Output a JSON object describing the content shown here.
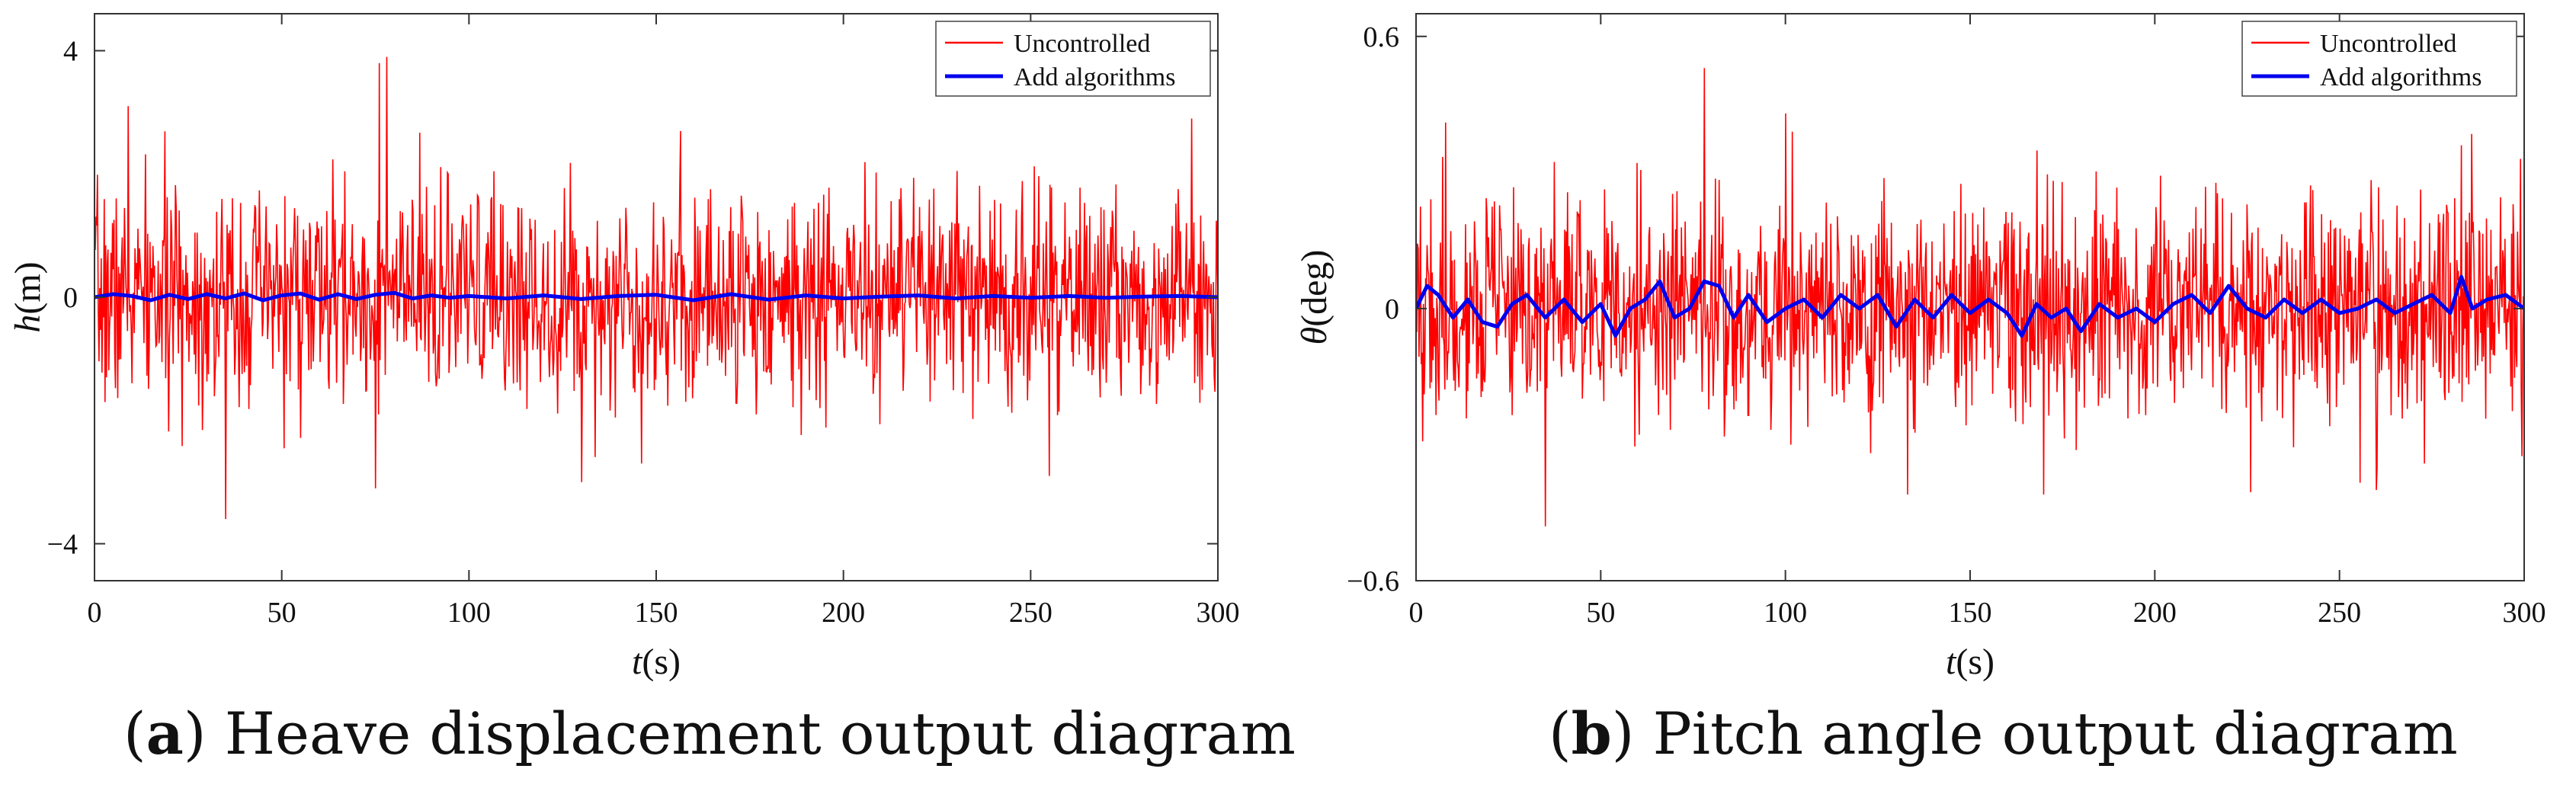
{
  "chart_data": [
    {
      "type": "line",
      "panel": "a",
      "panel_label": "a",
      "caption": "Heave displacement output diagram",
      "xlabel_var": "t",
      "xlabel_unit": "(s)",
      "ylabel_var": "h",
      "ylabel_unit": "(m)",
      "xlim": [
        0,
        300
      ],
      "ylim": [
        -4.6,
        4.6
      ],
      "xticks": [
        0,
        50,
        100,
        150,
        200,
        250,
        300
      ],
      "xtick_labels": [
        "0",
        "50",
        "100",
        "150",
        "200",
        "250",
        "300"
      ],
      "yticks": [
        -4,
        0,
        4
      ],
      "ytick_labels": [
        "−4",
        "0",
        "4"
      ],
      "legend": [
        "Uncontrolled",
        "Add algorithms"
      ],
      "legend_location": "top-right",
      "colors": {
        "uncontrolled": "#ff0000",
        "controlled": "#0000ee"
      },
      "series": [
        {
          "name": "Uncontrolled",
          "note": "dense random oscillation, peaks to about 3.9 and troughs to about -3.6",
          "amplitude": 1.2,
          "n_points": 1500,
          "seed": 7,
          "peaks": [
            [
              9,
              3.1
            ],
            [
              35,
              -3.6
            ],
            [
              76,
              3.8
            ],
            [
              78,
              3.9
            ],
            [
              75,
              -3.1
            ],
            [
              130,
              -3.0
            ],
            [
              146,
              -2.7
            ],
            [
              255,
              -2.9
            ],
            [
              293,
              2.9
            ]
          ]
        },
        {
          "name": "Add algorithms",
          "x": [
            0,
            5,
            10,
            15,
            20,
            25,
            30,
            35,
            40,
            45,
            50,
            55,
            60,
            65,
            70,
            75,
            80,
            85,
            90,
            95,
            100,
            110,
            120,
            130,
            140,
            150,
            160,
            170,
            180,
            190,
            200,
            210,
            220,
            230,
            240,
            250,
            260,
            270,
            280,
            290,
            300
          ],
          "values": [
            0.0,
            0.05,
            0.02,
            -0.05,
            0.04,
            -0.03,
            0.05,
            -0.02,
            0.06,
            -0.05,
            0.03,
            0.06,
            -0.04,
            0.05,
            -0.03,
            0.04,
            0.07,
            -0.02,
            0.03,
            -0.01,
            0.02,
            -0.02,
            0.03,
            -0.03,
            0.02,
            0.04,
            -0.05,
            0.05,
            -0.04,
            0.03,
            -0.02,
            0.01,
            0.03,
            -0.02,
            0.02,
            -0.01,
            0.02,
            -0.01,
            0.01,
            0.02,
            0.0
          ]
        }
      ]
    },
    {
      "type": "line",
      "panel": "b",
      "panel_label": "b",
      "caption": "Pitch angle output diagram",
      "xlabel_var": "t",
      "xlabel_unit": "(s)",
      "ylabel_var": "θ",
      "ylabel_unit": "(deg)",
      "xlim": [
        0,
        300
      ],
      "ylim": [
        -0.6,
        0.65
      ],
      "xticks": [
        0,
        50,
        100,
        150,
        200,
        250,
        300
      ],
      "xtick_labels": [
        "0",
        "50",
        "100",
        "150",
        "200",
        "250",
        "300"
      ],
      "yticks": [
        -0.6,
        0,
        0.6
      ],
      "ytick_labels": [
        "−0.6",
        "0",
        "0.6"
      ],
      "legend": [
        "Uncontrolled",
        "Add algorithms"
      ],
      "legend_location": "top-right",
      "colors": {
        "uncontrolled": "#ff0000",
        "controlled": "#0000ee"
      },
      "series": [
        {
          "name": "Uncontrolled",
          "note": "dense random oscillation, peaks to about 0.53 and troughs to about -0.48",
          "amplitude": 0.17,
          "n_points": 1500,
          "seed": 19,
          "peaks": [
            [
              8,
              0.41
            ],
            [
              35,
              -0.48
            ],
            [
              78,
              0.53
            ],
            [
              100,
              0.43
            ],
            [
              133,
              -0.41
            ],
            [
              170,
              -0.41
            ],
            [
              260,
              -0.4
            ],
            [
              283,
              0.36
            ],
            [
              299,
              0.33
            ]
          ]
        },
        {
          "name": "Add algorithms",
          "x": [
            0,
            3,
            6,
            10,
            14,
            18,
            22,
            26,
            30,
            35,
            40,
            45,
            50,
            54,
            58,
            62,
            66,
            70,
            74,
            78,
            82,
            86,
            90,
            95,
            100,
            105,
            110,
            115,
            120,
            125,
            130,
            135,
            140,
            145,
            150,
            155,
            160,
            164,
            168,
            172,
            176,
            180,
            185,
            190,
            195,
            200,
            205,
            210,
            215,
            220,
            225,
            230,
            235,
            240,
            245,
            250,
            255,
            260,
            265,
            270,
            275,
            280,
            283,
            286,
            290,
            295,
            300
          ],
          "values": [
            0.0,
            0.05,
            0.03,
            -0.02,
            0.02,
            -0.03,
            -0.04,
            0.01,
            0.03,
            -0.02,
            0.02,
            -0.03,
            0.01,
            -0.06,
            0.0,
            0.02,
            0.06,
            -0.02,
            0.0,
            0.06,
            0.05,
            -0.02,
            0.03,
            -0.03,
            0.0,
            0.02,
            -0.02,
            0.03,
            0.0,
            0.03,
            -0.04,
            0.02,
            -0.02,
            0.03,
            -0.01,
            0.02,
            -0.01,
            -0.06,
            0.01,
            -0.02,
            0.0,
            -0.05,
            0.01,
            -0.02,
            0.0,
            -0.03,
            0.01,
            0.03,
            -0.01,
            0.05,
            0.0,
            -0.02,
            0.02,
            -0.01,
            0.02,
            -0.01,
            0.0,
            0.02,
            -0.01,
            0.01,
            0.03,
            -0.01,
            0.07,
            0.0,
            0.02,
            0.03,
            0.0
          ]
        }
      ]
    }
  ]
}
